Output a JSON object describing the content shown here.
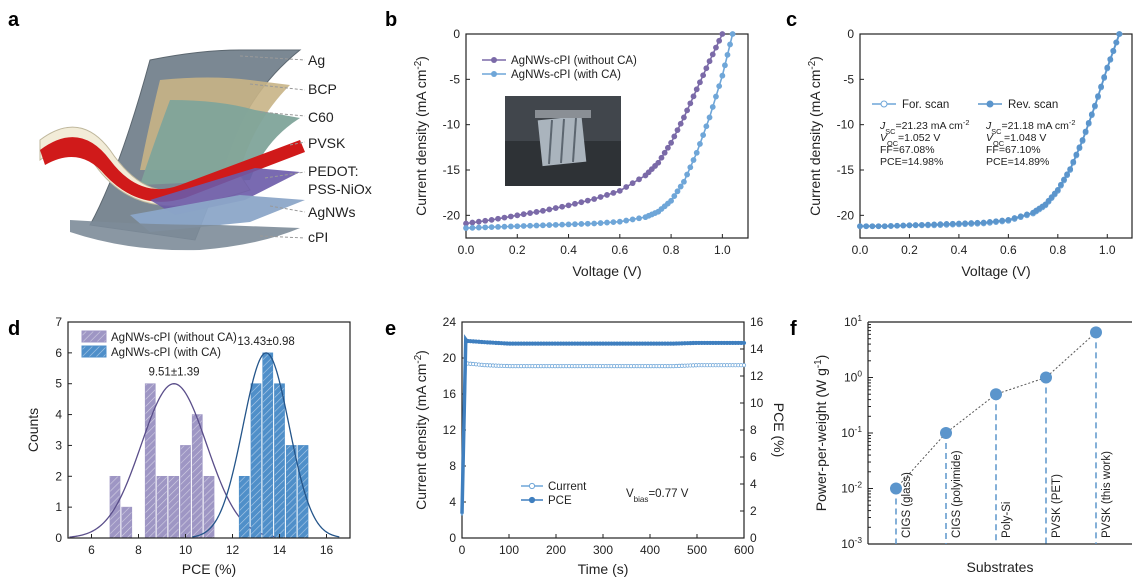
{
  "panel_letters": [
    "a",
    "b",
    "c",
    "d",
    "e",
    "f"
  ],
  "panel_a": {
    "layers": [
      "Ag",
      "BCP",
      "C60",
      "PVSK",
      "PEDOT:",
      "PSS-NiOx",
      "AgNWs",
      "cPI"
    ],
    "colors": {
      "Ag": "#6e7c86",
      "BCP": "#c8b486",
      "C60": "#7fa49a",
      "PVSK": "#d01a1a",
      "PEDOT": "#6a5aa8",
      "AgNWs": "#8ca6c8",
      "cPI": "#7d8c99"
    }
  },
  "chart_data": [
    {
      "panel": "b",
      "type": "line",
      "xlabel": "Voltage (V)",
      "ylabel": "Current density (mA cm-2)",
      "xlim": [
        0.0,
        1.1
      ],
      "ylim": [
        -22.5,
        0
      ],
      "xticks": [
        "0.0",
        "0.2",
        "0.4",
        "0.6",
        "0.8",
        "1.0"
      ],
      "yticks": [
        "-20",
        "-15",
        "-10",
        "-5",
        "0"
      ],
      "series": [
        {
          "name": "AgNWs-cPI (without CA)",
          "color": "#7b6aa8",
          "x": [
            0,
            0.1,
            0.2,
            0.3,
            0.4,
            0.5,
            0.6,
            0.7,
            0.75,
            0.8,
            0.85,
            0.9,
            0.95,
            1.0
          ],
          "y": [
            -20.9,
            -20.5,
            -20.0,
            -19.5,
            -18.9,
            -18.2,
            -17.3,
            -15.6,
            -14.2,
            -12.0,
            -9.2,
            -6.1,
            -3.0,
            0.0
          ]
        },
        {
          "name": "AgNWs-cPI (with CA)",
          "color": "#6fa6d8",
          "x": [
            0,
            0.1,
            0.2,
            0.3,
            0.4,
            0.5,
            0.6,
            0.7,
            0.75,
            0.8,
            0.85,
            0.9,
            0.95,
            1.0,
            1.04
          ],
          "y": [
            -21.4,
            -21.3,
            -21.2,
            -21.1,
            -21.0,
            -20.9,
            -20.7,
            -20.2,
            -19.6,
            -18.4,
            -16.3,
            -13.1,
            -9.2,
            -4.6,
            0.0
          ]
        }
      ]
    },
    {
      "panel": "c",
      "type": "line",
      "xlabel": "Voltage (V)",
      "ylabel": "Current density (mA cm-2)",
      "xlim": [
        0.0,
        1.1
      ],
      "ylim": [
        -22.5,
        0
      ],
      "xticks": [
        "0.0",
        "0.2",
        "0.4",
        "0.6",
        "0.8",
        "1.0"
      ],
      "yticks": [
        "-20",
        "-15",
        "-10",
        "-5",
        "0"
      ],
      "series": [
        {
          "name": "For. scan",
          "color": "#6fa6d8",
          "marker": "open",
          "x": [
            0,
            0.1,
            0.2,
            0.3,
            0.4,
            0.5,
            0.6,
            0.7,
            0.75,
            0.8,
            0.85,
            0.9,
            0.95,
            1.0,
            1.05
          ],
          "y": [
            -21.2,
            -21.2,
            -21.1,
            -21.1,
            -21.0,
            -20.9,
            -20.6,
            -19.8,
            -18.9,
            -17.3,
            -15.0,
            -11.8,
            -8.0,
            -3.8,
            0.0
          ]
        },
        {
          "name": "Rev. scan",
          "color": "#5b95cc",
          "marker": "filled",
          "x": [
            0,
            0.1,
            0.2,
            0.3,
            0.4,
            0.5,
            0.6,
            0.7,
            0.75,
            0.8,
            0.85,
            0.9,
            0.95,
            1.0,
            1.048
          ],
          "y": [
            -21.2,
            -21.2,
            -21.1,
            -21.0,
            -20.9,
            -20.8,
            -20.5,
            -19.7,
            -18.8,
            -17.2,
            -14.9,
            -11.7,
            -7.9,
            -3.7,
            0.0
          ]
        }
      ],
      "annotations": {
        "for_scan": [
          "JSC=21.23 mA cm-2",
          "VOC=1.052 V",
          "FF=67.08%",
          "PCE=14.98%"
        ],
        "rev_scan": [
          "JSC=21.18 mA cm-2",
          "VOC=1.048 V",
          "FF=67.10%",
          "PCE=14.89%"
        ]
      }
    },
    {
      "panel": "d",
      "type": "bar",
      "xlabel": "PCE (%)",
      "ylabel": "Counts",
      "xlim": [
        5,
        17
      ],
      "ylim": [
        0,
        7
      ],
      "xticks": [
        "6",
        "8",
        "10",
        "12",
        "14",
        "16"
      ],
      "yticks": [
        "0",
        "1",
        "2",
        "3",
        "4",
        "5",
        "6",
        "7"
      ],
      "series": [
        {
          "name": "AgNWs-cPI (without CA)",
          "color": "#9e96c4",
          "bin_centers": [
            7.0,
            7.5,
            8.5,
            9.0,
            9.5,
            10.0,
            10.5,
            11.0,
            11.5
          ],
          "counts": [
            2,
            1,
            5,
            2,
            2,
            3,
            4,
            2,
            0
          ],
          "fit_mean": 9.51,
          "fit_sd": 1.39,
          "label": "9.51±1.39"
        },
        {
          "name": "AgNWs-cPI (with CA)",
          "color": "#4f8fc9",
          "bin_centers": [
            12.5,
            13.0,
            13.5,
            14.0,
            14.5,
            15.0
          ],
          "counts": [
            2,
            5,
            6,
            5,
            3,
            3
          ],
          "fit_mean": 13.43,
          "fit_sd": 0.98,
          "label": "13.43±0.98"
        }
      ]
    },
    {
      "panel": "e",
      "type": "line",
      "xlabel": "Time (s)",
      "ylabel": "Current density (mA cm-2)",
      "ylabel_right": "PCE (%)",
      "xlim": [
        0,
        600
      ],
      "ylim": [
        0,
        24
      ],
      "ylim_right": [
        0,
        16
      ],
      "xticks": [
        "0",
        "100",
        "200",
        "300",
        "400",
        "500",
        "600"
      ],
      "yticks": [
        "0",
        "4",
        "8",
        "12",
        "16",
        "20",
        "24"
      ],
      "yticks_right": [
        "0",
        "2",
        "4",
        "6",
        "8",
        "10",
        "12",
        "14",
        "16"
      ],
      "series": [
        {
          "name": "Current",
          "color": "#6fa6d8",
          "axis": "left",
          "marker": "open",
          "x": [
            0,
            8,
            10,
            50,
            100,
            150,
            200,
            250,
            300,
            350,
            400,
            450,
            500,
            550,
            600
          ],
          "y": [
            2.5,
            19.6,
            19.4,
            19.2,
            19.1,
            19.1,
            19.1,
            19.1,
            19.1,
            19.1,
            19.1,
            19.1,
            19.2,
            19.2,
            19.2
          ]
        },
        {
          "name": "PCE",
          "color": "#3f7fbf",
          "axis": "right",
          "marker": "filled",
          "x": [
            0,
            8,
            10,
            50,
            100,
            150,
            200,
            250,
            300,
            350,
            400,
            450,
            500,
            550,
            600
          ],
          "y": [
            1.8,
            14.7,
            14.6,
            14.5,
            14.4,
            14.4,
            14.4,
            14.4,
            14.4,
            14.4,
            14.4,
            14.4,
            14.45,
            14.45,
            14.45
          ]
        }
      ],
      "annotation": "Vbias=0.77 V"
    },
    {
      "panel": "f",
      "type": "scatter",
      "xlabel": "Substrates",
      "ylabel": "Power-per-weight (W g-1)",
      "yscale": "log",
      "ylim": [
        0.001,
        10
      ],
      "yticks": [
        "10-3",
        "10-2",
        "10-1",
        "100",
        "101"
      ],
      "categories": [
        "CIGS (glass)",
        "CIGS (polyimide)",
        "Poly-Si",
        "PVSK (PET)",
        "PVSK (this work)"
      ],
      "values": [
        0.01,
        0.1,
        0.5,
        1.0,
        6.5
      ],
      "color": "#5b95cc"
    }
  ]
}
